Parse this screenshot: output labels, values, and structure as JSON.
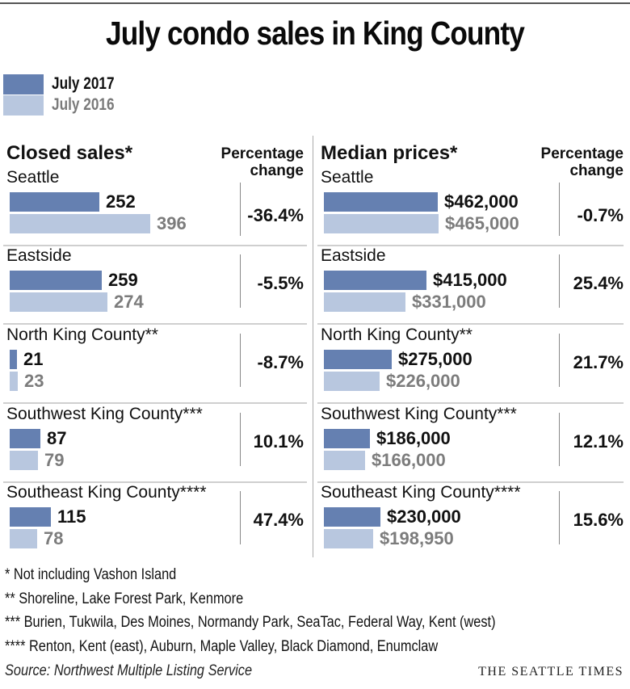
{
  "title": "July condo sales in King County",
  "legend": [
    {
      "label": "July 2017",
      "color": "#6580b1"
    },
    {
      "label": "July 2016",
      "color": "#b8c7df"
    }
  ],
  "chart_data": [
    {
      "type": "bar",
      "title": "Closed sales*",
      "pct_header": "Percentage change",
      "categories": [
        "Seattle",
        "Eastside",
        "North King County**",
        "Southwest King County***",
        "Southeast King County****"
      ],
      "series": [
        {
          "name": "July 2017",
          "values": [
            252,
            259,
            21,
            87,
            115
          ],
          "labels": [
            "252",
            "259",
            "21",
            "87",
            "115"
          ]
        },
        {
          "name": "July 2016",
          "values": [
            396,
            274,
            23,
            79,
            78
          ],
          "labels": [
            "396",
            "274",
            "23",
            "79",
            "78"
          ]
        }
      ],
      "percentage_change": [
        "-36.4%",
        "-5.5%",
        "-8.7%",
        "10.1%",
        "47.4%"
      ],
      "orientation": "horizontal"
    },
    {
      "type": "bar",
      "title": "Median prices*",
      "pct_header": "Percentage change",
      "categories": [
        "Seattle",
        "Eastside",
        "North King County**",
        "Southwest King County***",
        "Southeast King County****"
      ],
      "series": [
        {
          "name": "July 2017",
          "values": [
            462000,
            415000,
            275000,
            186000,
            230000
          ],
          "labels": [
            "$462,000",
            "$415,000",
            "$275,000",
            "$186,000",
            "$230,000"
          ]
        },
        {
          "name": "July 2016",
          "values": [
            465000,
            331000,
            226000,
            166000,
            198950
          ],
          "labels": [
            "$465,000",
            "$331,000",
            "$226,000",
            "$166,000",
            "$198,950"
          ]
        }
      ],
      "percentage_change": [
        "-0.7%",
        "25.4%",
        "21.7%",
        "12.1%",
        "15.6%"
      ],
      "orientation": "horizontal"
    }
  ],
  "footnotes": [
    "* Not including Vashon Island",
    "**  Shoreline, Lake Forest Park, Kenmore",
    "*** Burien, Tukwila, Des Moines, Normandy Park, SeaTac, Federal Way, Kent (west)",
    "**** Renton, Kent (east), Auburn, Maple Valley, Black Diamond, Enumclaw"
  ],
  "source": "Source: Northwest Multiple Listing Service",
  "brand": "THE SEATTLE TIMES"
}
